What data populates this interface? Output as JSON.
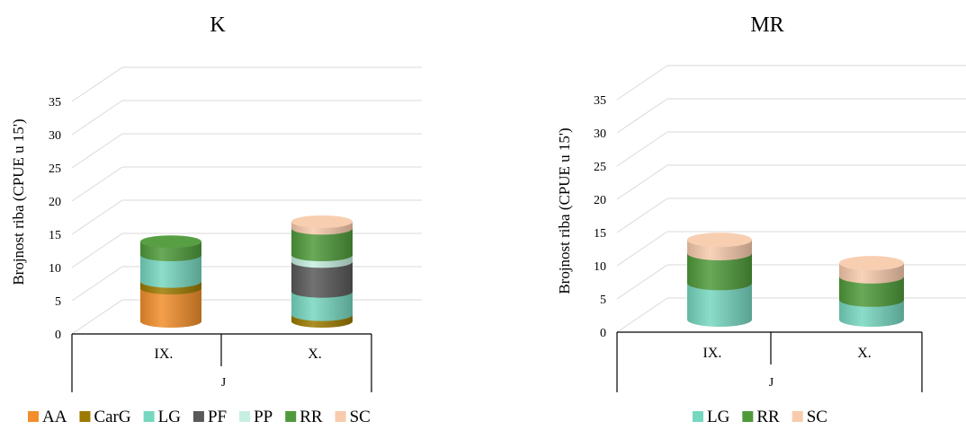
{
  "chart_data": [
    {
      "type": "bar",
      "subtype": "stacked-3d-cylinder",
      "title": "K",
      "ylabel": "Brojnost riba (CPUE u 15')",
      "xlabel": "",
      "group_label": "J",
      "categories": [
        "IX.",
        "X."
      ],
      "yticks": [
        0,
        5,
        10,
        15,
        20,
        25,
        30,
        35
      ],
      "ylim": [
        0,
        35
      ],
      "grid": true,
      "legend_position": "bottom",
      "series": [
        {
          "name": "AA",
          "color": "#F28E2B",
          "values": [
            5,
            0
          ]
        },
        {
          "name": "CarG",
          "color": "#9C7A00",
          "values": [
            1,
            1
          ]
        },
        {
          "name": "LG",
          "color": "#76D7C0",
          "values": [
            4,
            3.5
          ]
        },
        {
          "name": "PF",
          "color": "#595959",
          "values": [
            0,
            4.5
          ]
        },
        {
          "name": "PP",
          "color": "#C6EFDF",
          "values": [
            0,
            1
          ]
        },
        {
          "name": "RR",
          "color": "#4F9A3A",
          "values": [
            2,
            4
          ]
        },
        {
          "name": "SC",
          "color": "#F8CBAD",
          "values": [
            0,
            1
          ]
        }
      ]
    },
    {
      "type": "bar",
      "subtype": "stacked-3d-cylinder",
      "title": "MR",
      "ylabel": "Brojnost riba (CPUE u 15')",
      "xlabel": "",
      "group_label": "J",
      "categories": [
        "IX.",
        "X."
      ],
      "yticks": [
        0,
        5,
        10,
        15,
        20,
        25,
        30,
        35
      ],
      "ylim": [
        0,
        35
      ],
      "grid": true,
      "legend_position": "bottom",
      "series": [
        {
          "name": "LG",
          "color": "#76D7C0",
          "values": [
            5.5,
            3
          ]
        },
        {
          "name": "RR",
          "color": "#4F9A3A",
          "values": [
            4.5,
            3.5
          ]
        },
        {
          "name": "SC",
          "color": "#F8CBAD",
          "values": [
            2,
            2
          ]
        }
      ]
    }
  ]
}
